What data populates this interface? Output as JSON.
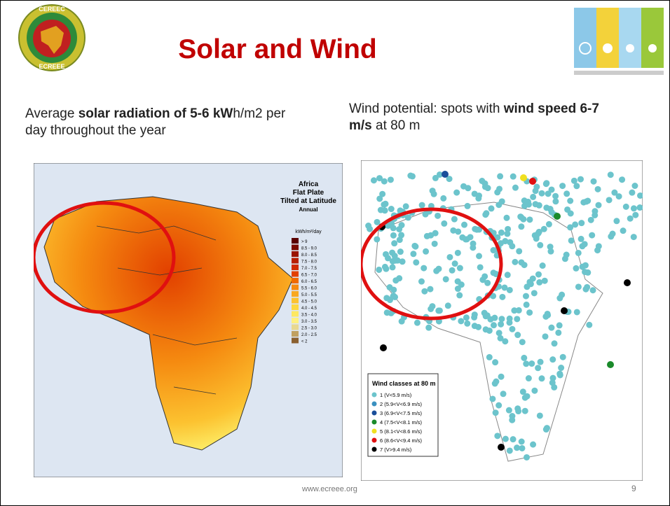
{
  "header": {
    "title": "Solar and Wind",
    "logo_top": "CEREEC",
    "logo_bottom": "ECREEE"
  },
  "left_text": [
    {
      "text": "Average ",
      "bold": false
    },
    {
      "text": "solar radiation of 5-6 kW",
      "bold": true
    },
    {
      "text": "h/m2 per day throughout the year",
      "bold": false
    }
  ],
  "right_text": [
    {
      "text": "Wind potential: spots with ",
      "bold": false
    },
    {
      "text": "wind speed 6-7 m/s",
      "bold": true
    },
    {
      "text": " at 80 m",
      "bold": false
    }
  ],
  "solar_map": {
    "title_lines": [
      "Africa",
      "Flat Plate",
      "Tilted at Latitude",
      "Annual"
    ],
    "unit": "kWh/m²/day",
    "legend": [
      {
        "label": "> 9",
        "color": "#5a0000"
      },
      {
        "label": "8.5 - 9.0",
        "color": "#7a0a00"
      },
      {
        "label": "8.0 - 8.5",
        "color": "#9a1400"
      },
      {
        "label": "7.5 - 8.0",
        "color": "#b81e00"
      },
      {
        "label": "7.0 - 7.5",
        "color": "#d02a00"
      },
      {
        "label": "6.5 - 7.0",
        "color": "#e24000"
      },
      {
        "label": "6.0 - 6.5",
        "color": "#ef6a00"
      },
      {
        "label": "5.5 - 6.0",
        "color": "#f58a10"
      },
      {
        "label": "5.0 - 5.5",
        "color": "#f9a820"
      },
      {
        "label": "4.5 - 5.0",
        "color": "#fcc230"
      },
      {
        "label": "4.0 - 4.5",
        "color": "#fdd840"
      },
      {
        "label": "3.5 - 4.0",
        "color": "#fee860"
      },
      {
        "label": "3.0 - 3.5",
        "color": "#fff080"
      },
      {
        "label": "2.5 - 3.0",
        "color": "#e8d890"
      },
      {
        "label": "2.0 - 2.5",
        "color": "#c0a060"
      },
      {
        "label": "< 2",
        "color": "#8a6030"
      }
    ]
  },
  "wind_map": {
    "legend_title": "Wind classes at 80 m",
    "legend": [
      {
        "label": "1 (V<5.9 m/s)",
        "color": "#6cc4cc"
      },
      {
        "label": "2 (5.9<V<6.9 m/s)",
        "color": "#3a90c0"
      },
      {
        "label": "3 (6.9<V<7.5 m/s)",
        "color": "#1a4e9a"
      },
      {
        "label": "4 (7.5<V<8.1 m/s)",
        "color": "#1a8a2a"
      },
      {
        "label": "5 (8.1<V<8.6 m/s)",
        "color": "#f0e020"
      },
      {
        "label": "6 (8.6<V<9.4 m/s)",
        "color": "#e01010"
      },
      {
        "label": "7 (V>9.4 m/s)",
        "color": "#000000"
      }
    ]
  },
  "footer": {
    "url": "www.ecreee.org",
    "page": "9"
  }
}
